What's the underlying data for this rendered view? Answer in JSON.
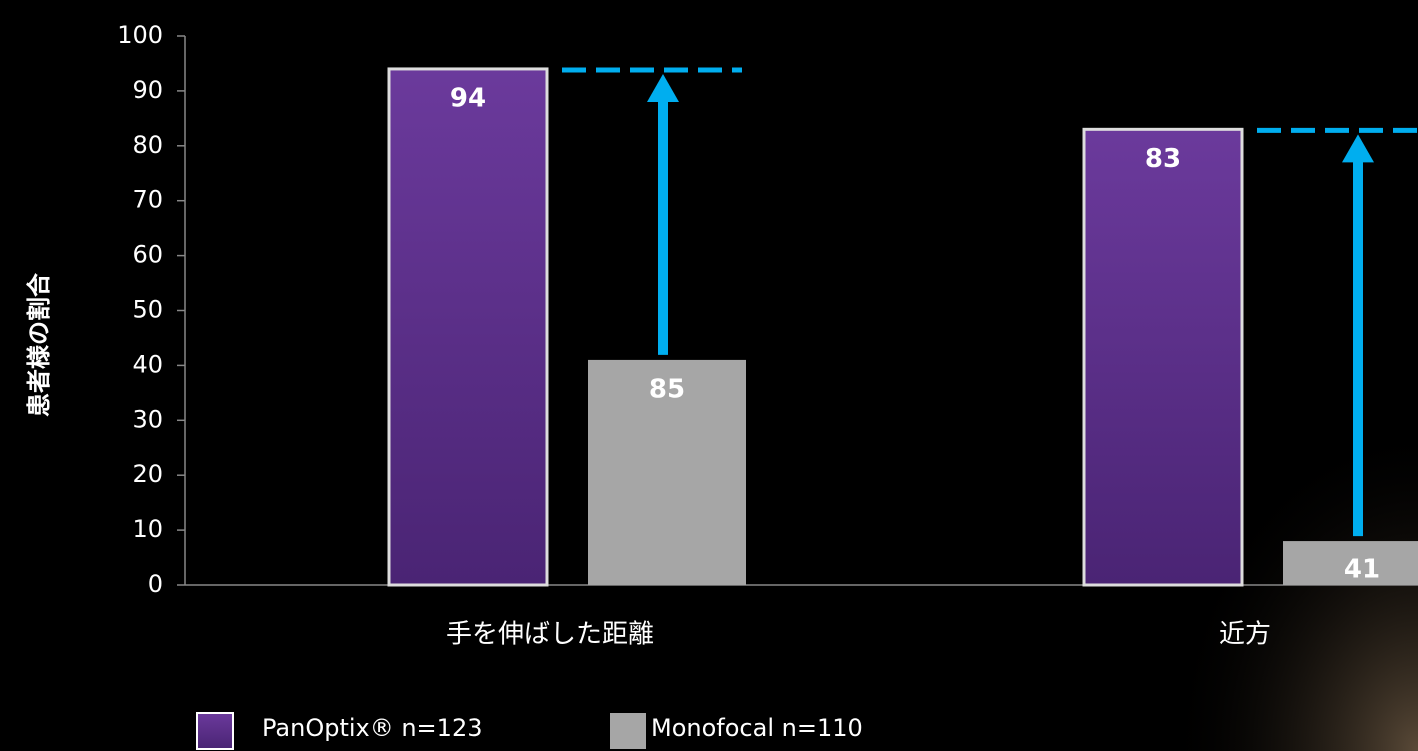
{
  "chart_data": {
    "type": "bar",
    "y_label": "患者様の割合",
    "categories": [
      "手を伸ばした距離",
      "近方"
    ],
    "series": [
      {
        "name": "PanOptix® n=123",
        "color": "#5e3490",
        "values": [
          94,
          83
        ]
      },
      {
        "name": "Monofocal n=110",
        "color": "#a6a6a6",
        "values": [
          41,
          8
        ]
      }
    ],
    "annotations": [
      "85",
      "41"
    ],
    "arrow_color": "#00aeef",
    "ylim": [
      0,
      100
    ],
    "yticks": [
      0,
      10,
      20,
      30,
      40,
      50,
      60,
      70,
      80,
      90,
      100
    ],
    "legend": "bottom-left"
  }
}
